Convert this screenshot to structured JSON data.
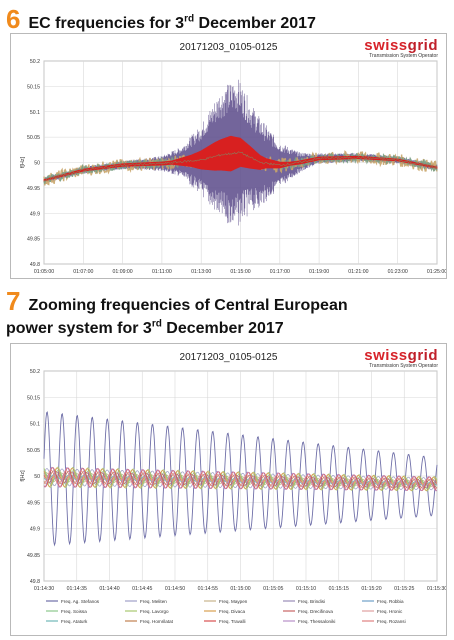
{
  "section6": {
    "number": "6",
    "title": "EC frequencies for 3",
    "title_sup": "rd",
    "title_end": " December 2017"
  },
  "section7": {
    "number": "7",
    "title_line1": "Zooming frequencies of Central European",
    "title_line2a": "power system for 3",
    "title_sup": "rd",
    "title_line2b": " December 2017"
  },
  "logo": {
    "brand_a": "swiss",
    "brand_b": "grid",
    "subtitle": "Transmission System Operator"
  },
  "colors": {
    "accent_orange": "#f08a1c",
    "logo_red": "#d7232a",
    "envelope_purple": "#5a4a8a",
    "core_red": "#d82020",
    "band_tan": "#c9a56a",
    "band_green": "#7aa085",
    "grid": "#d8d8d8"
  },
  "chart_data": [
    {
      "type": "line",
      "title": "20171203_0105-0125",
      "ylabel": "f[Hz]",
      "xlabel": "",
      "ylim": [
        49.8,
        50.2
      ],
      "y_ticks": [
        "49.8",
        "49.85",
        "49.9",
        "49.95",
        "50",
        "50.05",
        "50.1",
        "50.15",
        "50.2"
      ],
      "x_ticks": [
        "01:05:00",
        "01:07:00",
        "01:09:00",
        "01:11:00",
        "01:13:00",
        "01:15:00",
        "01:17:00",
        "01:19:00",
        "01:21:00",
        "01:23:00",
        "01:25:00"
      ],
      "x_range_minutes": [
        0,
        20
      ],
      "grid": true,
      "series_summary": {
        "mean_trend": [
          {
            "t": 0,
            "f": 49.965
          },
          {
            "t": 2,
            "f": 49.985
          },
          {
            "t": 4,
            "f": 49.995
          },
          {
            "t": 6,
            "f": 49.998
          },
          {
            "t": 8,
            "f": 50.005
          },
          {
            "t": 9,
            "f": 50.015
          },
          {
            "t": 10,
            "f": 50.02
          },
          {
            "t": 11,
            "f": 50.0
          },
          {
            "t": 12,
            "f": 49.995
          },
          {
            "t": 13,
            "f": 50.0
          },
          {
            "t": 14,
            "f": 50.008
          },
          {
            "t": 16,
            "f": 50.01
          },
          {
            "t": 18,
            "f": 50.005
          },
          {
            "t": 20,
            "f": 49.99
          }
        ],
        "oscillation_envelope": [
          {
            "t": 0,
            "amp": 0.006
          },
          {
            "t": 4,
            "amp": 0.008
          },
          {
            "t": 6,
            "amp": 0.015
          },
          {
            "t": 7,
            "amp": 0.03
          },
          {
            "t": 8,
            "amp": 0.07
          },
          {
            "t": 9,
            "amp": 0.13
          },
          {
            "t": 9.8,
            "amp": 0.15
          },
          {
            "t": 10.5,
            "amp": 0.11
          },
          {
            "t": 11.2,
            "amp": 0.08
          },
          {
            "t": 12,
            "amp": 0.045
          },
          {
            "t": 13,
            "amp": 0.02
          },
          {
            "t": 14,
            "amp": 0.01
          },
          {
            "t": 20,
            "amp": 0.006
          }
        ],
        "core_envelope": [
          {
            "t": 0,
            "amp": 0.002
          },
          {
            "t": 6.5,
            "amp": 0.004
          },
          {
            "t": 7.5,
            "amp": 0.012
          },
          {
            "t": 8.7,
            "amp": 0.028
          },
          {
            "t": 9.5,
            "amp": 0.035
          },
          {
            "t": 10.5,
            "amp": 0.022
          },
          {
            "t": 11.3,
            "amp": 0.01
          },
          {
            "t": 12.5,
            "amp": 0.004
          },
          {
            "t": 20,
            "amp": 0.002
          }
        ]
      }
    },
    {
      "type": "line",
      "title": "20171203_0105-0125",
      "ylabel": "f[Hz]",
      "xlabel": "",
      "ylim": [
        49.8,
        50.2
      ],
      "y_ticks": [
        "49.8",
        "49.85",
        "49.9",
        "49.95",
        "50",
        "50.05",
        "50.1",
        "50.15",
        "50.2"
      ],
      "x_ticks": [
        "01:14:30",
        "01:14:35",
        "01:14:40",
        "01:14:45",
        "01:14:50",
        "01:14:55",
        "01:15:00",
        "01:15:05",
        "01:15:10",
        "01:15:15",
        "01:15:20",
        "01:15:25",
        "01:15:30"
      ],
      "x_range_seconds": [
        0,
        60
      ],
      "grid": true,
      "oscillation": {
        "period_s": 2.3,
        "large_amp_start": 0.128,
        "large_amp_end": 0.055,
        "center_start": 49.995,
        "center_end": 49.98,
        "small_amp": 0.02,
        "trend_end": 49.985
      },
      "legend": [
        {
          "name": "Freq. Ag. Stefanos",
          "color": "#6f6fa8"
        },
        {
          "name": "Freq. Meliten",
          "color": "#a0a0c8"
        },
        {
          "name": "Freq. Maypen",
          "color": "#c8b48c"
        },
        {
          "name": "Freq. Brindisi",
          "color": "#9a8cb8"
        },
        {
          "name": "Freq. Robbia",
          "color": "#6fa0c8"
        },
        {
          "name": "Freq. Soissa",
          "color": "#8cc88c"
        },
        {
          "name": "Freq. Lavorgo",
          "color": "#a8c870"
        },
        {
          "name": "Freq. Divaca",
          "color": "#d8a050"
        },
        {
          "name": "Freq. Drecifinova",
          "color": "#c86464"
        },
        {
          "name": "Freq. Hronic",
          "color": "#e0a0a0"
        },
        {
          "name": "Freq. Ataturk",
          "color": "#70b8b8"
        },
        {
          "name": "Freq. Homrilatat",
          "color": "#c08050"
        },
        {
          "name": "Freq. Travalli",
          "color": "#d85050"
        },
        {
          "name": "Freq. Thessaloniki",
          "color": "#b890c8"
        },
        {
          "name": "Freq. Rozansi",
          "color": "#e08080"
        }
      ]
    }
  ]
}
